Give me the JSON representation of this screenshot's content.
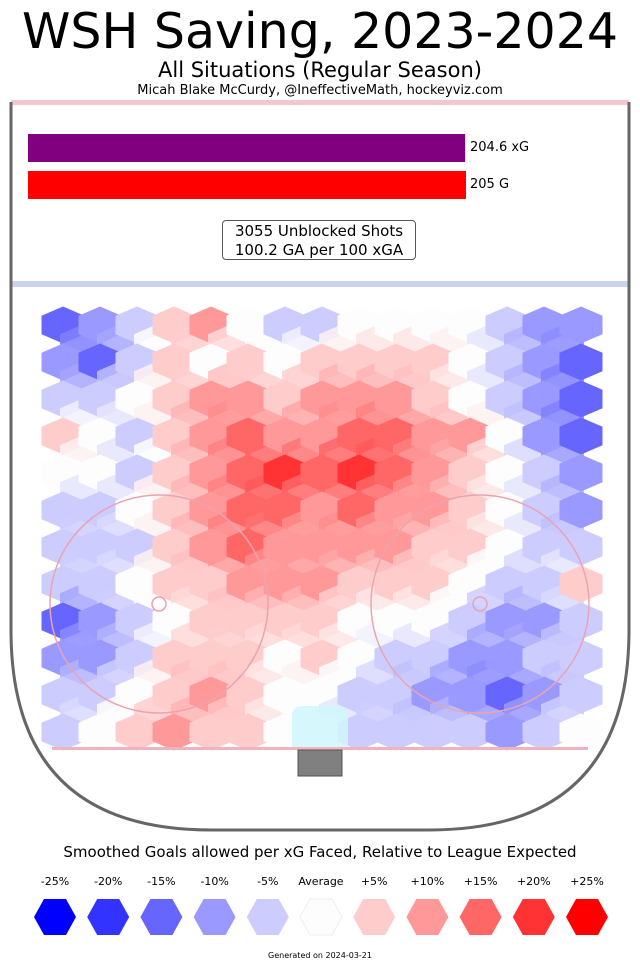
{
  "header": {
    "title": "WSH Saving, 2023-2024",
    "subtitle": "All Situations (Regular Season)",
    "credit": "Micah Blake McCurdy, @IneffectiveMath, hockeyviz.com"
  },
  "summary": {
    "xg_label": "204.6 xG",
    "g_label": "205 G",
    "shots_line": "3055 Unblocked Shots",
    "rate_line": "100.2 GA per 100 xGA"
  },
  "chart_data": {
    "type": "heatmap",
    "title": "WSH Saving, 2023-2024",
    "subtitle": "All Situations (Regular Season)",
    "bars": [
      {
        "label": "204.6 xG",
        "value": 204.6,
        "color": "#800080"
      },
      {
        "label": "205 G",
        "value": 205,
        "color": "#ff0000"
      }
    ],
    "unblocked_shots": 3055,
    "ga_per_100_xga": 100.2,
    "colorbar": {
      "title": "Smoothed Goals allowed per xG Faced, Relative to League Expected",
      "stops": [
        {
          "label": "-25%",
          "value": -25,
          "color": "#0000ff"
        },
        {
          "label": "-20%",
          "value": -20,
          "color": "#3333ff"
        },
        {
          "label": "-15%",
          "value": -15,
          "color": "#6666ff"
        },
        {
          "label": "-10%",
          "value": -10,
          "color": "#9999ff"
        },
        {
          "label": "-5%",
          "value": -5,
          "color": "#ccccff"
        },
        {
          "label": "Average",
          "value": 0,
          "color": "#fdfdfd"
        },
        {
          "label": "+5%",
          "value": 5,
          "color": "#ffcccc"
        },
        {
          "label": "+10%",
          "value": 10,
          "color": "#ff9999"
        },
        {
          "label": "+15%",
          "value": 15,
          "color": "#ff6666"
        },
        {
          "label": "+20%",
          "value": 20,
          "color": "#ff3333"
        },
        {
          "label": "+25%",
          "value": 25,
          "color": "#ff0000"
        }
      ]
    },
    "hex_columns": 15,
    "hex_rows": 12,
    "hex_values": [
      [
        -15,
        -10,
        -5,
        5,
        10,
        0,
        -5,
        -5,
        0,
        0,
        0,
        0,
        -5,
        -10,
        -10
      ],
      [
        -10,
        -15,
        -5,
        5,
        0,
        5,
        0,
        5,
        5,
        5,
        5,
        0,
        -5,
        -10,
        -15
      ],
      [
        -5,
        -5,
        0,
        5,
        10,
        10,
        5,
        10,
        10,
        10,
        5,
        0,
        -5,
        -10,
        -15
      ],
      [
        5,
        0,
        -5,
        5,
        10,
        15,
        10,
        10,
        15,
        15,
        10,
        10,
        0,
        -10,
        -15
      ],
      [
        0,
        0,
        -5,
        5,
        10,
        15,
        20,
        15,
        20,
        15,
        10,
        5,
        0,
        -5,
        -10
      ],
      [
        -5,
        -5,
        0,
        5,
        10,
        15,
        15,
        10,
        15,
        10,
        10,
        5,
        0,
        -5,
        -10
      ],
      [
        -5,
        -5,
        -5,
        5,
        10,
        15,
        10,
        10,
        10,
        10,
        5,
        5,
        0,
        -5,
        -5
      ],
      [
        -5,
        -5,
        0,
        5,
        5,
        10,
        10,
        10,
        5,
        5,
        5,
        0,
        -5,
        -5,
        5
      ],
      [
        -15,
        -10,
        -5,
        0,
        5,
        5,
        5,
        5,
        0,
        0,
        0,
        -5,
        -10,
        -10,
        -5
      ],
      [
        -10,
        -10,
        -5,
        5,
        5,
        5,
        0,
        5,
        0,
        -5,
        -5,
        -10,
        -10,
        -5,
        -5
      ],
      [
        -5,
        -5,
        0,
        5,
        10,
        5,
        0,
        0,
        -5,
        -5,
        -10,
        -10,
        -15,
        -10,
        -5
      ],
      [
        -5,
        0,
        5,
        10,
        5,
        5,
        0,
        0,
        -5,
        -5,
        -5,
        -5,
        -10,
        -5,
        0
      ]
    ]
  },
  "footer": {
    "generated": "Generated on 2024-03-21"
  }
}
